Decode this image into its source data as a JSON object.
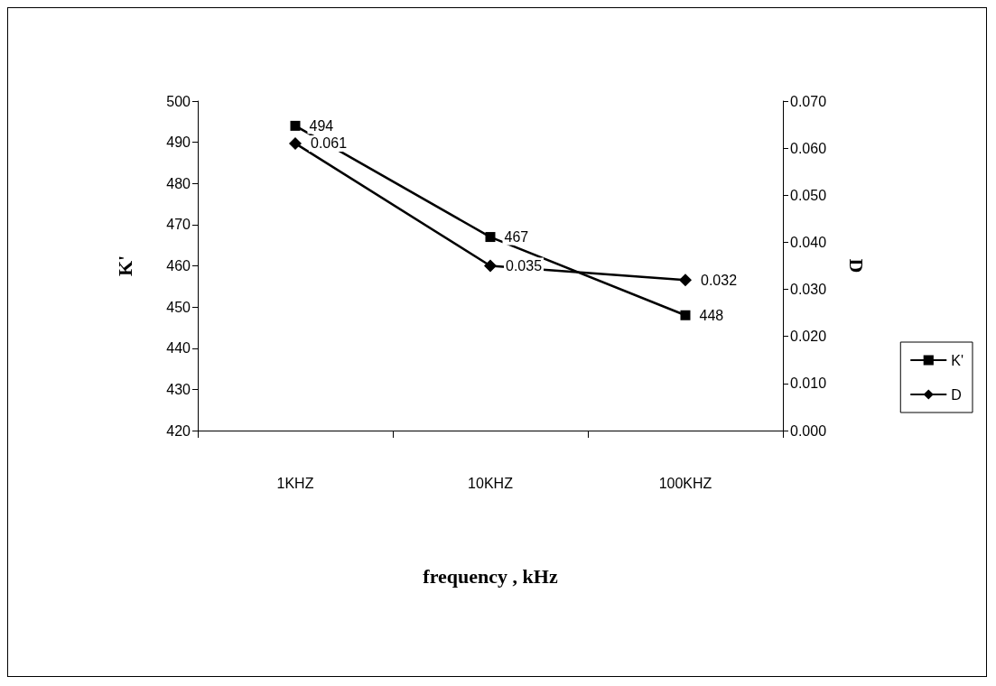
{
  "chart_data": {
    "type": "line",
    "xlabel": "frequency , kHz",
    "ylabel": "K'",
    "y2label": "D",
    "categories": [
      "1KHZ",
      "10KHZ",
      "100KHZ"
    ],
    "series": [
      {
        "name": "K'",
        "color": "#000000",
        "marker": "square",
        "values": [
          494,
          467,
          448
        ]
      },
      {
        "name": "D",
        "color": "#000000",
        "marker": "diamond",
        "axis": "y2",
        "values": [
          0.061,
          0.035,
          0.032
        ]
      }
    ],
    "ylim": [
      420,
      500
    ],
    "yticks": [
      420,
      430,
      440,
      450,
      460,
      470,
      480,
      490,
      500
    ],
    "y2lim": [
      0,
      0.07
    ],
    "y2ticks": [
      {
        "value": 0,
        "label": "0.000"
      },
      {
        "value": 0.01,
        "label": "0.010"
      },
      {
        "value": 0.02,
        "label": "0.020"
      },
      {
        "value": 0.03,
        "label": "0.030"
      },
      {
        "value": 0.04,
        "label": "0.040"
      },
      {
        "value": 0.05,
        "label": "0.050"
      },
      {
        "value": 0.06,
        "label": "0.060"
      },
      {
        "value": 0.07,
        "label": "0.070"
      }
    ],
    "data_labels": true,
    "grid": false,
    "legend": "right",
    "line_style": "solid"
  }
}
